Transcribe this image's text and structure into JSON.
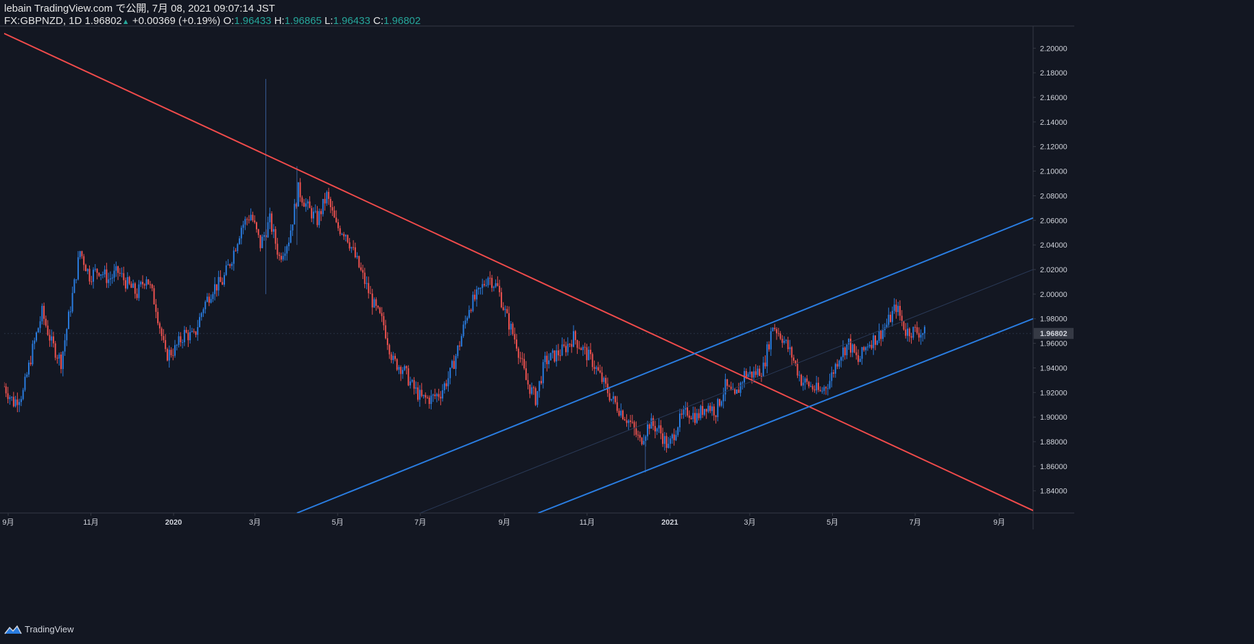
{
  "header": {
    "line1": "lebain TradingView.com で公開, 7月 08, 2021 09:07:14 JST",
    "symbol": "FX:GBPNZD, 1D",
    "last": "1.96802",
    "change": "+0.00369 (+0.19%)",
    "o_label": "O:",
    "o_val": "1.96433",
    "h_label": "H:",
    "h_val": "1.96865",
    "l_label": "L:",
    "l_val": "1.96433",
    "c_label": "C:",
    "c_val": "1.96802"
  },
  "footer": {
    "brand": "TradingView",
    "logo_icon": "tradingview-logo-icon"
  },
  "colors": {
    "bg": "#131722",
    "up": "#2a7de1",
    "down": "#ef5350",
    "trendline": "#f04b4b",
    "channel": "#2a7de1",
    "axis_text": "#d1d4dc"
  },
  "chart_data": {
    "type": "candlestick",
    "symbol": "FX:GBPNZD",
    "interval": "1D",
    "ylim": [
      1.822,
      2.218
    ],
    "y_ticks": [
      2.2,
      2.18,
      2.16,
      2.14,
      2.12,
      2.1,
      2.08,
      2.06,
      2.04,
      2.02,
      2.0,
      1.98,
      1.96,
      1.94,
      1.92,
      1.9,
      1.88,
      1.86,
      1.84
    ],
    "y_tick_labels": [
      "2.20000",
      "2.18000",
      "2.16000",
      "2.14000",
      "2.12000",
      "2.10000",
      "2.08000",
      "2.06000",
      "2.04000",
      "2.02000",
      "2.00000",
      "1.98000",
      "1.96000",
      "1.94000",
      "1.92000",
      "1.90000",
      "1.88000",
      "1.86000",
      "1.84000"
    ],
    "x_range": [
      "2019-08-29",
      "2021-09-26"
    ],
    "x_ticks": [
      {
        "date": "2019-09-01",
        "label": "9月"
      },
      {
        "date": "2019-11-01",
        "label": "11月"
      },
      {
        "date": "2020-01-01",
        "label": "2020"
      },
      {
        "date": "2020-03-01",
        "label": "3月"
      },
      {
        "date": "2020-05-01",
        "label": "5月"
      },
      {
        "date": "2020-07-01",
        "label": "7月"
      },
      {
        "date": "2020-09-01",
        "label": "9月"
      },
      {
        "date": "2020-11-01",
        "label": "11月"
      },
      {
        "date": "2021-01-01",
        "label": "2021"
      },
      {
        "date": "2021-03-01",
        "label": "3月"
      },
      {
        "date": "2021-05-01",
        "label": "5月"
      },
      {
        "date": "2021-07-01",
        "label": "7月"
      },
      {
        "date": "2021-09-01",
        "label": "9月"
      }
    ],
    "last_price": 1.96802,
    "last_price_label": "1.96802",
    "closes": [
      [
        "2019-08-29",
        1.925
      ],
      [
        "2019-09-05",
        1.912
      ],
      [
        "2019-09-12",
        1.92
      ],
      [
        "2019-09-19",
        1.955
      ],
      [
        "2019-09-26",
        1.985
      ],
      [
        "2019-10-03",
        1.96
      ],
      [
        "2019-10-10",
        1.945
      ],
      [
        "2019-10-17",
        1.99
      ],
      [
        "2019-10-24",
        2.035
      ],
      [
        "2019-10-31",
        2.015
      ],
      [
        "2019-11-07",
        2.02
      ],
      [
        "2019-11-14",
        2.012
      ],
      [
        "2019-11-21",
        2.018
      ],
      [
        "2019-11-28",
        2.008
      ],
      [
        "2019-12-05",
        2.0
      ],
      [
        "2019-12-12",
        2.015
      ],
      [
        "2019-12-19",
        1.99
      ],
      [
        "2019-12-26",
        1.95
      ],
      [
        "2020-01-02",
        1.955
      ],
      [
        "2020-01-09",
        1.968
      ],
      [
        "2020-01-16",
        1.965
      ],
      [
        "2020-01-23",
        1.99
      ],
      [
        "2020-01-30",
        2.005
      ],
      [
        "2020-02-06",
        2.01
      ],
      [
        "2020-02-13",
        2.03
      ],
      [
        "2020-02-20",
        2.055
      ],
      [
        "2020-02-27",
        2.065
      ],
      [
        "2020-03-05",
        2.04
      ],
      [
        "2020-03-12",
        2.06
      ],
      [
        "2020-03-19",
        2.03
      ],
      [
        "2020-03-26",
        2.045
      ],
      [
        "2020-04-02",
        2.085
      ],
      [
        "2020-04-09",
        2.07
      ],
      [
        "2020-04-16",
        2.06
      ],
      [
        "2020-04-23",
        2.08
      ],
      [
        "2020-04-30",
        2.055
      ],
      [
        "2020-05-07",
        2.05
      ],
      [
        "2020-05-14",
        2.03
      ],
      [
        "2020-05-21",
        2.01
      ],
      [
        "2020-05-28",
        1.99
      ],
      [
        "2020-06-04",
        1.975
      ],
      [
        "2020-06-11",
        1.945
      ],
      [
        "2020-06-18",
        1.94
      ],
      [
        "2020-06-25",
        1.925
      ],
      [
        "2020-07-02",
        1.915
      ],
      [
        "2020-07-09",
        1.915
      ],
      [
        "2020-07-16",
        1.92
      ],
      [
        "2020-07-23",
        1.935
      ],
      [
        "2020-07-30",
        1.96
      ],
      [
        "2020-08-06",
        1.99
      ],
      [
        "2020-08-13",
        2.0
      ],
      [
        "2020-08-20",
        2.015
      ],
      [
        "2020-08-27",
        2.005
      ],
      [
        "2020-09-03",
        1.98
      ],
      [
        "2020-09-10",
        1.96
      ],
      [
        "2020-09-17",
        1.93
      ],
      [
        "2020-09-24",
        1.915
      ],
      [
        "2020-10-01",
        1.945
      ],
      [
        "2020-10-08",
        1.95
      ],
      [
        "2020-10-15",
        1.955
      ],
      [
        "2020-10-22",
        1.965
      ],
      [
        "2020-10-29",
        1.955
      ],
      [
        "2020-11-05",
        1.945
      ],
      [
        "2020-11-12",
        1.93
      ],
      [
        "2020-11-19",
        1.915
      ],
      [
        "2020-11-26",
        1.905
      ],
      [
        "2020-12-03",
        1.895
      ],
      [
        "2020-12-10",
        1.88
      ],
      [
        "2020-12-17",
        1.895
      ],
      [
        "2020-12-24",
        1.89
      ],
      [
        "2020-12-31",
        1.875
      ],
      [
        "2021-01-07",
        1.895
      ],
      [
        "2021-01-14",
        1.905
      ],
      [
        "2021-01-21",
        1.9
      ],
      [
        "2021-01-28",
        1.91
      ],
      [
        "2021-02-04",
        1.905
      ],
      [
        "2021-02-11",
        1.925
      ],
      [
        "2021-02-18",
        1.915
      ],
      [
        "2021-02-25",
        1.935
      ],
      [
        "2021-03-04",
        1.935
      ],
      [
        "2021-03-11",
        1.94
      ],
      [
        "2021-03-18",
        1.975
      ],
      [
        "2021-03-25",
        1.965
      ],
      [
        "2021-04-01",
        1.95
      ],
      [
        "2021-04-08",
        1.93
      ],
      [
        "2021-04-15",
        1.925
      ],
      [
        "2021-04-22",
        1.92
      ],
      [
        "2021-04-29",
        1.93
      ],
      [
        "2021-05-06",
        1.95
      ],
      [
        "2021-05-13",
        1.96
      ],
      [
        "2021-05-20",
        1.945
      ],
      [
        "2021-05-27",
        1.96
      ],
      [
        "2021-06-03",
        1.965
      ],
      [
        "2021-06-10",
        1.975
      ],
      [
        "2021-06-17",
        1.99
      ],
      [
        "2021-06-24",
        1.97
      ],
      [
        "2021-07-01",
        1.97
      ],
      [
        "2021-07-08",
        1.968
      ]
    ],
    "wick_extremes": [
      {
        "date": "2020-03-09",
        "high": 2.175,
        "low": 2.0
      },
      {
        "date": "2020-12-14",
        "high": 1.88,
        "low": 1.855
      },
      {
        "date": "2020-04-01",
        "high": 2.104,
        "low": 2.04
      }
    ],
    "lines": [
      {
        "name": "downtrend",
        "color": "#f04b4b",
        "points": [
          [
            "2019-08-29",
            2.212
          ],
          [
            "2021-09-26",
            1.824
          ]
        ]
      },
      {
        "name": "channel-upper",
        "color": "#2a7de1",
        "points": [
          [
            "2020-04-01",
            1.822
          ],
          [
            "2021-09-26",
            2.062
          ]
        ]
      },
      {
        "name": "channel-lower",
        "color": "#2a7de1",
        "points": [
          [
            "2020-09-26",
            1.822
          ],
          [
            "2021-09-26",
            1.98
          ]
        ]
      },
      {
        "name": "channel-mid",
        "color": "#2a3a58",
        "points": [
          [
            "2020-07-01",
            1.822
          ],
          [
            "2021-09-26",
            2.02
          ]
        ]
      }
    ]
  }
}
